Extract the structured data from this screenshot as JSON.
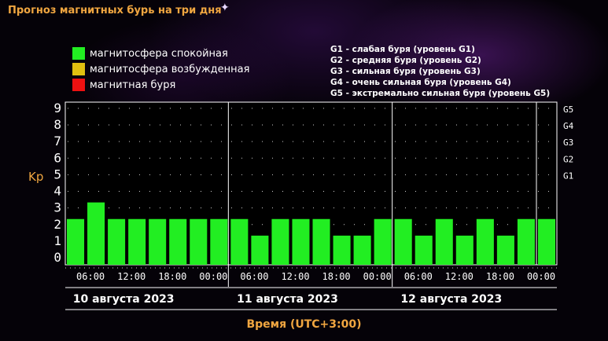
{
  "header": {
    "title": "Прогноз магнитных бурь на три дня"
  },
  "legend": {
    "items": [
      {
        "label": "магнитосфера спокойная",
        "color": "#22ee22"
      },
      {
        "label": "магнитосфера возбужденная",
        "color": "#e0c010"
      },
      {
        "label": "магнитная буря",
        "color": "#ee1111"
      }
    ]
  },
  "g_legend": [
    "G1 - слабая буря (уровень G1)",
    "G2 - средняя буря (уровень G2)",
    "G3 - сильная буря (уровень G3)",
    "G4 - очень сильная буря (уровень G4)",
    "G5 - экстремально сильная буря (уровень G5)"
  ],
  "chart_data": {
    "type": "bar",
    "ylabel": "Kp",
    "xlabel": "Время (UTC+3:00)",
    "ylim": [
      0,
      9
    ],
    "y_ticks": [
      "0",
      "1",
      "2",
      "3",
      "4",
      "5",
      "6",
      "7",
      "8",
      "9"
    ],
    "g_levels": [
      {
        "label": "G1",
        "kp": 5
      },
      {
        "label": "G2",
        "kp": 6
      },
      {
        "label": "G3",
        "kp": 7
      },
      {
        "label": "G4",
        "kp": 8
      },
      {
        "label": "G5",
        "kp": 9
      }
    ],
    "x_tick_labels": [
      "06:00",
      "12:00",
      "18:00",
      "00:00",
      "06:00",
      "12:00",
      "18:00",
      "00:00",
      "06:00",
      "12:00",
      "18:00",
      "00:00"
    ],
    "days": [
      "10 августа 2023",
      "11 августа 2023",
      "12 августа 2023"
    ],
    "bar_color": "#22ee22",
    "values": [
      2,
      3,
      2,
      2,
      2,
      2,
      2,
      2,
      2,
      1,
      2,
      2,
      2,
      1,
      1,
      2,
      2,
      1,
      2,
      1,
      2,
      1,
      2,
      2
    ],
    "grid": true
  }
}
